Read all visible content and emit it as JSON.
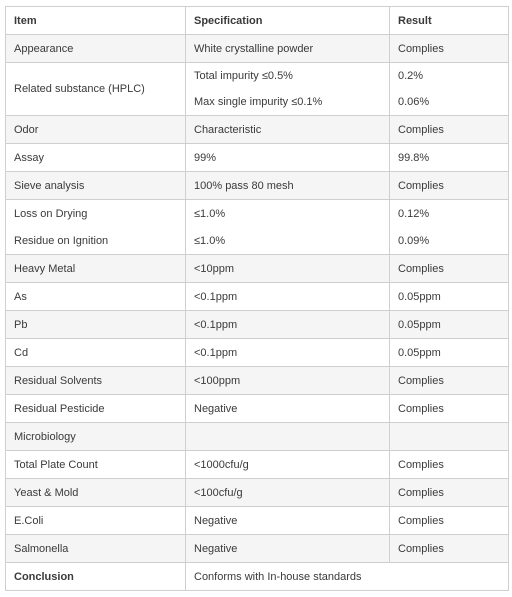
{
  "table": {
    "headers": [
      "Item",
      "Specification",
      "Result"
    ],
    "rows": [
      {
        "item": "Appearance",
        "spec": "White crystalline powder",
        "result": "Complies"
      },
      {
        "item": "Related substance (HPLC)",
        "spec": "Total impurity ≤0.5%",
        "result": "0.2%"
      },
      {
        "item": "",
        "spec": "Max single impurity ≤0.1%",
        "result": "0.06%"
      },
      {
        "item": "Odor",
        "spec": "Characteristic",
        "result": "Complies"
      },
      {
        "item": "Assay",
        "spec": "99%",
        "result": "99.8%"
      },
      {
        "item": "Sieve analysis",
        "spec": "100% pass 80 mesh",
        "result": "Complies"
      },
      {
        "item": "Loss on Drying",
        "spec": "≤1.0%",
        "result": "0.12%"
      },
      {
        "item": "Residue on Ignition",
        "spec": "≤1.0%",
        "result": "0.09%"
      },
      {
        "item": "Heavy Metal",
        "spec": "<10ppm",
        "result": "Complies"
      },
      {
        "item": "As",
        "spec": "<0.1ppm",
        "result": "0.05ppm"
      },
      {
        "item": "Pb",
        "spec": "<0.1ppm",
        "result": "0.05ppm"
      },
      {
        "item": "Cd",
        "spec": "<0.1ppm",
        "result": "0.05ppm"
      },
      {
        "item": "Residual Solvents",
        "spec": "<100ppm",
        "result": "Complies"
      },
      {
        "item": "Residual Pesticide",
        "spec": "Negative",
        "result": "Complies"
      },
      {
        "item": "Microbiology",
        "spec": "",
        "result": ""
      },
      {
        "item": "Total Plate Count",
        "spec": "<1000cfu/g",
        "result": "Complies"
      },
      {
        "item": "Yeast & Mold",
        "spec": "<100cfu/g",
        "result": "Complies"
      },
      {
        "item": "E.Coli",
        "spec": "Negative",
        "result": "Complies"
      },
      {
        "item": "Salmonella",
        "spec": "Negative",
        "result": "Complies"
      }
    ],
    "conclusion": {
      "label": "Conclusion",
      "value": "Conforms with In-house standards"
    }
  }
}
